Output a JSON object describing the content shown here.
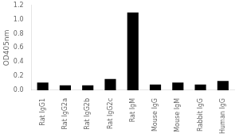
{
  "chart_data": {
    "type": "bar",
    "categories": [
      "Rat IgG1",
      "Rat IgG2a",
      "Rat IgG2b",
      "Rat IgG2c",
      "Rat IgM",
      "Mouse IgG",
      "Mouse IgM",
      "Rabbit IgG",
      "Human IgG"
    ],
    "values": [
      0.11,
      0.07,
      0.07,
      0.16,
      1.1,
      0.08,
      0.11,
      0.08,
      0.13
    ],
    "color": "#000000",
    "ylabel": "OD405nm",
    "ylim": [
      0,
      1.2
    ],
    "yticks": [
      {
        "value": 0,
        "label": "0.0"
      },
      0.2,
      0.4,
      0.6,
      0.8,
      {
        "value": 1,
        "label": "1.0"
      },
      1.2
    ],
    "grid": false
  }
}
